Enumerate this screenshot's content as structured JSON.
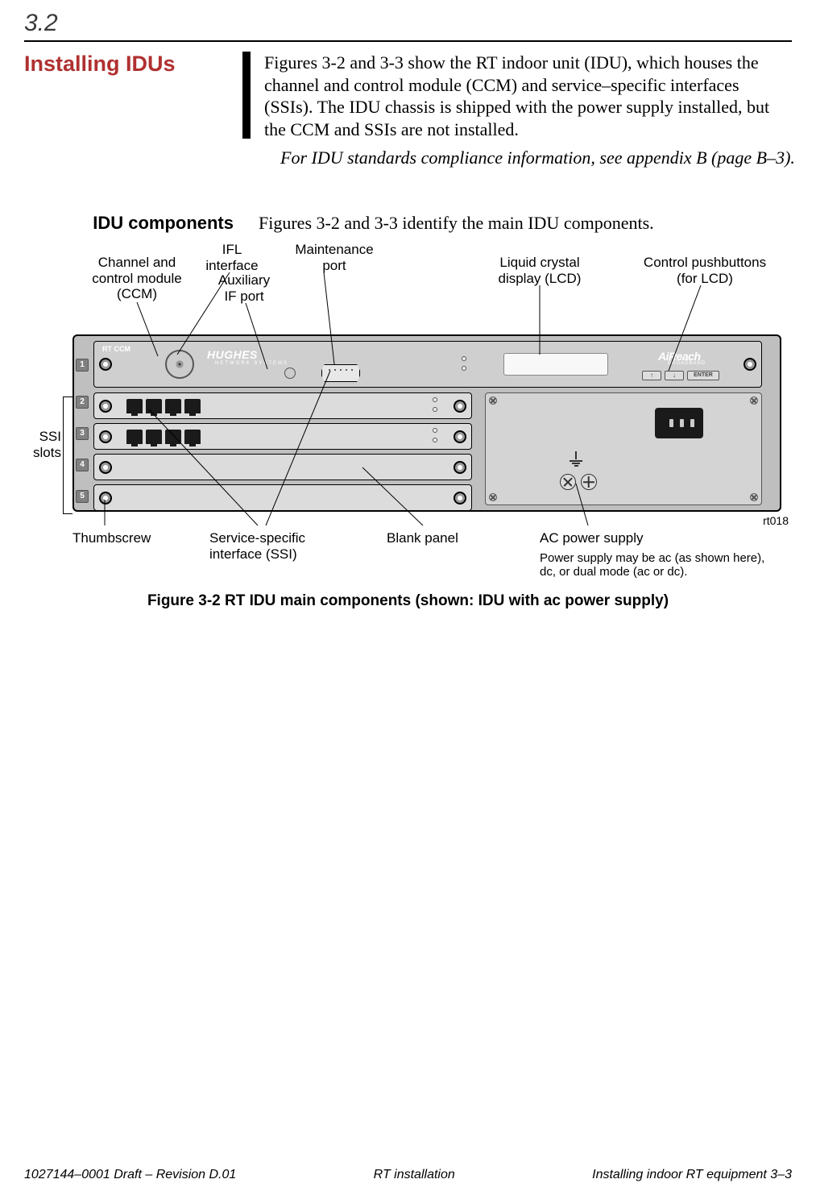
{
  "section_number": "3.2",
  "heading_main": "Installing IDUs",
  "para1": "Figures 3-2 and 3-3 show the RT indoor unit (IDU), which houses the channel and control module (CCM) and service–specific interfaces (SSIs). The IDU chassis is shipped with the power supply installed, but the CCM and SSIs are not installed.",
  "para2": "For IDU standards compliance information, see appendix B (page B–3).",
  "heading_sub": "IDU components",
  "sub_para": "Figures 3-2 and 3-3 identify the main IDU components.",
  "callouts": {
    "ccm": "Channel and\ncontrol module\n(CCM)",
    "ifl": "IFL\ninterface",
    "aux": "Auxiliary\nIF port",
    "maint": "Maintenance\nport",
    "lcd": "Liquid crystal\ndisplay (LCD)",
    "pushbtn": "Control pushbuttons\n(for LCD)",
    "ssi_slots": "SSI\nslots",
    "thumbscrew": "Thumbscrew",
    "ssi": "Service-specific\ninterface (SSI)",
    "blank": "Blank panel",
    "psu": "AC power supply",
    "psu_note": "Power supply may be ac (as shown here), dc, or dual mode (ac or dc)."
  },
  "device": {
    "rt_ccm_label": "RT CCM",
    "hughes": "HUGHES",
    "hughes_sub": "NETWORK SYSTEMS",
    "reach": "AiReach",
    "reach_sub": "BROADBAND",
    "btn_up": "↑",
    "btn_down": "↓",
    "btn_enter": "ENTER",
    "slot_numbers": [
      "1",
      "2",
      "3",
      "4",
      "5"
    ]
  },
  "rt018": "rt018",
  "figure_caption": "Figure  3-2    RT IDU main components (shown: IDU with ac power supply)",
  "footer": {
    "left": "1027144–0001  Draft – Revision D.01",
    "center": "RT installation",
    "right": "Installing indoor RT equipment   3–3"
  },
  "colors": {
    "heading_red": "#b03030",
    "device_bg": "#bfbfbf",
    "module_bg": "#dcdcdc"
  }
}
